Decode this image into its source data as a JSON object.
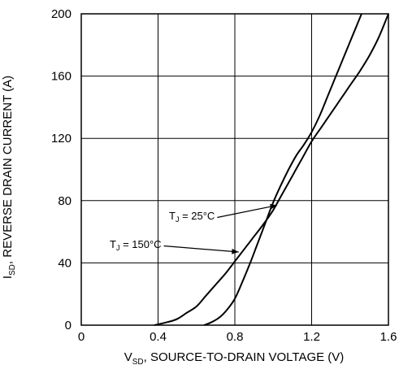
{
  "chart_data": {
    "type": "line",
    "xlabel_main": "V",
    "xlabel_sub": "SD",
    "xlabel_rest": ", SOURCE-TO-DRAIN VOLTAGE (V)",
    "ylabel_main": "I",
    "ylabel_sub": "SD",
    "ylabel_rest": ", REVERSE DRAIN CURRENT (A)",
    "xlim": [
      0,
      1.6
    ],
    "ylim": [
      0,
      200
    ],
    "x_ticks": [
      0,
      0.4,
      0.8,
      1.2,
      1.6
    ],
    "x_tick_labels": [
      "0",
      "0.4",
      "0.8",
      "1.2",
      "1.6"
    ],
    "y_ticks": [
      0,
      40,
      80,
      120,
      160,
      200
    ],
    "y_tick_labels": [
      "0",
      "40",
      "80",
      "120",
      "160",
      "200"
    ],
    "grid": true,
    "series": [
      {
        "name_main": "T",
        "name_sub": "J",
        "name_rest": " = 25°C",
        "points": [
          [
            0.64,
            0
          ],
          [
            0.68,
            2
          ],
          [
            0.72,
            5
          ],
          [
            0.76,
            10
          ],
          [
            0.8,
            17
          ],
          [
            0.84,
            28
          ],
          [
            0.88,
            40
          ],
          [
            0.92,
            53
          ],
          [
            0.96,
            66
          ],
          [
            1.0,
            79
          ],
          [
            1.04,
            90
          ],
          [
            1.08,
            100
          ],
          [
            1.12,
            109
          ],
          [
            1.16,
            116
          ],
          [
            1.2,
            124
          ],
          [
            1.24,
            134
          ],
          [
            1.28,
            146
          ],
          [
            1.32,
            158
          ],
          [
            1.36,
            170
          ],
          [
            1.4,
            182
          ],
          [
            1.44,
            194
          ],
          [
            1.46,
            200
          ]
        ],
        "arrow_to": [
          1.02,
          77
        ]
      },
      {
        "name_main": "T",
        "name_sub": "J",
        "name_rest": " = 150°C",
        "points": [
          [
            0.38,
            0
          ],
          [
            0.45,
            2
          ],
          [
            0.5,
            4
          ],
          [
            0.55,
            8
          ],
          [
            0.6,
            12
          ],
          [
            0.65,
            19
          ],
          [
            0.7,
            26
          ],
          [
            0.75,
            33
          ],
          [
            0.8,
            41
          ],
          [
            0.85,
            49
          ],
          [
            0.9,
            57
          ],
          [
            0.95,
            65
          ],
          [
            1.0,
            74
          ],
          [
            1.05,
            85
          ],
          [
            1.1,
            96
          ],
          [
            1.15,
            107
          ],
          [
            1.2,
            118
          ],
          [
            1.25,
            127
          ],
          [
            1.3,
            136
          ],
          [
            1.35,
            145
          ],
          [
            1.4,
            154
          ],
          [
            1.45,
            163
          ],
          [
            1.5,
            173
          ],
          [
            1.55,
            185
          ],
          [
            1.6,
            200
          ]
        ],
        "arrow_to": [
          0.82,
          47
        ]
      }
    ]
  }
}
